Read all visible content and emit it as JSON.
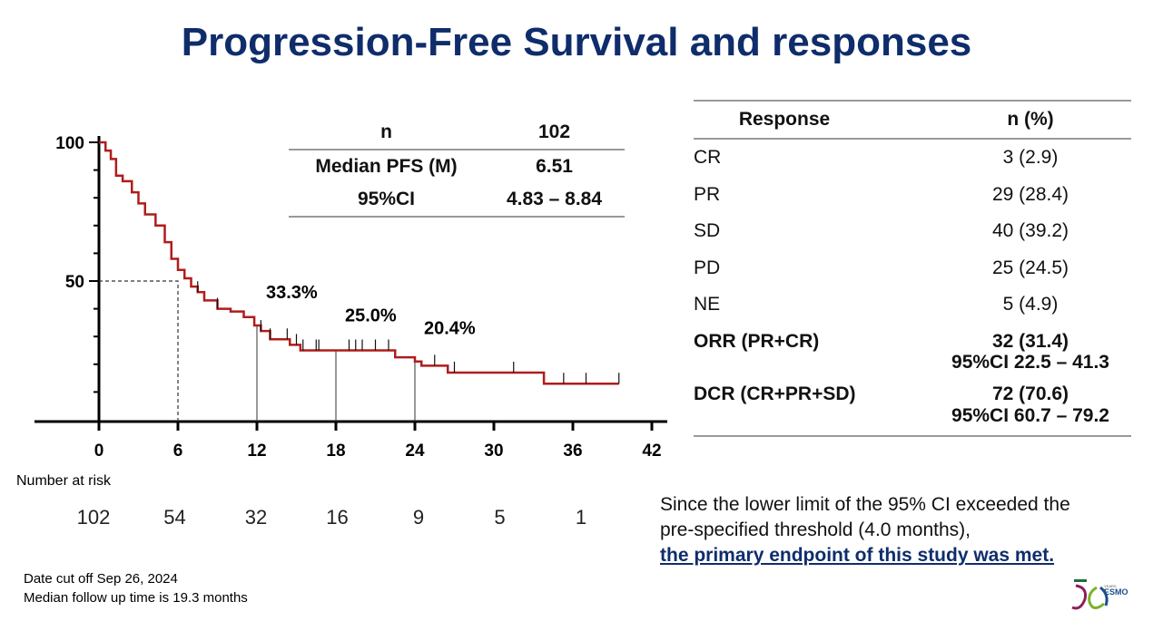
{
  "title": "Progression-Free Survival and responses",
  "pfs_table": {
    "rows": [
      [
        "n",
        "102"
      ],
      [
        "Median PFS (M)",
        "6.51"
      ],
      [
        "95%CI",
        "4.83 – 8.84"
      ]
    ]
  },
  "response_table": {
    "headers": [
      "Response",
      "n (%)"
    ],
    "rows": [
      [
        "CR",
        "3 (2.9)"
      ],
      [
        "PR",
        "29 (28.4)"
      ],
      [
        "SD",
        "40 (39.2)"
      ],
      [
        "PD",
        "25 (24.5)"
      ],
      [
        "NE",
        "5 (4.9)"
      ]
    ],
    "orr": {
      "label": "ORR (PR+CR)",
      "value": "32 (31.4)",
      "ci": "95%CI 22.5 – 41.3"
    },
    "dcr": {
      "label": "DCR (CR+PR+SD)",
      "value": "72 (70.6)",
      "ci": "95%CI 60.7 – 79.2"
    }
  },
  "number_at_risk": {
    "label": "Number at risk",
    "values": [
      "102",
      "54",
      "32",
      "16",
      "9",
      "5",
      "1"
    ]
  },
  "footnote": [
    "Date cut off Sep 26, 2024",
    "Median follow up time is 19.3 months"
  ],
  "conclusion": {
    "text1": "Since the lower limit of the 95% CI exceeded the",
    "text2": "pre-specified threshold (4.0 months),",
    "emph": "the primary endpoint of this study was met."
  },
  "logo": {
    "text": "ESMO",
    "sub": "YEARS"
  },
  "chart_data": {
    "type": "line",
    "title": "",
    "xlabel": "",
    "ylabel": "",
    "xlim": [
      0,
      42
    ],
    "ylim": [
      0,
      100
    ],
    "x_ticks": [
      "0",
      "6",
      "12",
      "18",
      "24",
      "30",
      "36",
      "42"
    ],
    "y_ticks": [
      "100",
      "50"
    ],
    "color": "#b01c1c",
    "steps": [
      [
        0,
        100
      ],
      [
        0.5,
        97
      ],
      [
        0.9,
        94
      ],
      [
        1.3,
        88
      ],
      [
        1.8,
        86
      ],
      [
        2.5,
        82
      ],
      [
        3,
        78
      ],
      [
        3.5,
        74
      ],
      [
        4.3,
        70
      ],
      [
        5,
        64
      ],
      [
        5.5,
        58
      ],
      [
        6,
        54
      ],
      [
        6.5,
        51
      ],
      [
        7,
        48
      ],
      [
        7.5,
        46
      ],
      [
        8,
        43
      ],
      [
        9,
        40
      ],
      [
        10,
        39
      ],
      [
        11,
        37
      ],
      [
        11.8,
        34
      ],
      [
        12.3,
        32
      ],
      [
        13,
        29
      ],
      [
        14.5,
        27
      ],
      [
        15.3,
        25
      ],
      [
        22.2,
        25
      ],
      [
        22.5,
        22.5
      ],
      [
        24,
        21
      ],
      [
        24.5,
        19.5
      ],
      [
        26.5,
        17
      ],
      [
        33.8,
        13
      ],
      [
        39.5,
        13
      ]
    ],
    "censored": [
      7.5,
      9,
      12.3,
      13,
      14.3,
      15,
      15.5,
      16.5,
      16.7,
      19,
      19.5,
      20,
      21,
      22,
      25.5,
      27,
      31.5,
      35.3,
      37,
      39.5
    ],
    "annotations": [
      {
        "x": 12,
        "y": 33.3,
        "label": "33.3%"
      },
      {
        "x": 18,
        "y": 25.0,
        "label": "25.0%"
      },
      {
        "x": 24,
        "y": 20.4,
        "label": "20.4%"
      }
    ],
    "median": {
      "x": 6.51,
      "y": 50
    }
  }
}
